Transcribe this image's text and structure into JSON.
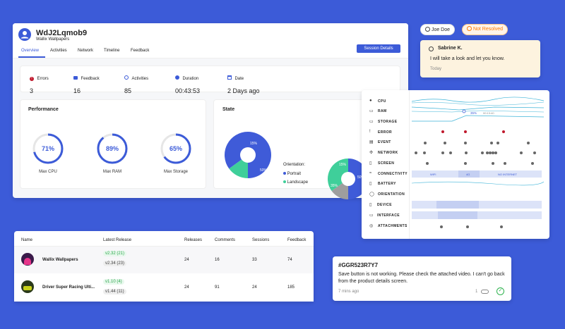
{
  "app": {
    "title": "WdJ2Lqmob9",
    "subtitle": "Wallix Wallpapers",
    "tabs": [
      "Overview",
      "Activities",
      "Network",
      "Timeline",
      "Feedback"
    ],
    "session_button": "Session Details"
  },
  "stats": [
    {
      "label": "Errors",
      "value": "3",
      "icon": "error-icon"
    },
    {
      "label": "Feedback",
      "value": "16",
      "icon": "feedback-icon"
    },
    {
      "label": "Activities",
      "value": "85",
      "icon": "activities-icon"
    },
    {
      "label": "Duration",
      "value": "00:43:53",
      "icon": "timer-icon"
    },
    {
      "label": "Date",
      "value": "2 Days ago",
      "icon": "calendar-icon"
    }
  ],
  "performance": {
    "title": "Performance",
    "gauges": [
      {
        "label": "Max CPU",
        "value": "71%",
        "fraction": 0.71
      },
      {
        "label": "Max RAM",
        "value": "89%",
        "fraction": 0.89
      },
      {
        "label": "Max Storage",
        "value": "65%",
        "fraction": 0.65
      }
    ]
  },
  "state": {
    "title": "State",
    "pie1": {
      "legend_title": "Orientation:",
      "slices": [
        {
          "label": "Portrait",
          "pct": 50,
          "text": "50%",
          "color": "#3f5bd8"
        },
        {
          "label": "Landscape",
          "pct": 15,
          "text": "15%",
          "color": "#3fcf9a"
        },
        {
          "label": "",
          "pct": 35,
          "text": "",
          "color": "#3f5bd8"
        }
      ]
    },
    "pie2": {
      "legend_title": "Co",
      "slices": [
        {
          "label": "",
          "pct": 50,
          "text": "50%",
          "color": "#3f5bd8"
        },
        {
          "label": "",
          "pct": 15,
          "text": "15%",
          "color": "#9e9e9e"
        },
        {
          "label": "",
          "pct": 35,
          "text": "35%",
          "color": "#3fcf9a"
        }
      ]
    }
  },
  "user": {
    "name": "Joe Doe",
    "status": "Not Resolved",
    "status_color": "#ff7a00"
  },
  "comment": {
    "author": "Sabrine K.",
    "text": "I will take a look and let you know.",
    "time": "Today"
  },
  "timeline": {
    "rows": [
      "CPU",
      "RAM",
      "STORAGE",
      "ERROR",
      "EVENT",
      "NETWORK",
      "SCREEN",
      "CONNECTIVITY",
      "BATTERY",
      "ORIENTATION",
      "DEVICE",
      "INTERFACE",
      "ATTACHMENTS"
    ],
    "ram_readout": "35%",
    "ram_time": "00:13:40",
    "connectivity": [
      "WIFI",
      "4G",
      "NO INTERNET"
    ]
  },
  "table": {
    "headers": [
      "Name",
      "Latest Release",
      "Releases",
      "Comments",
      "Sessions",
      "Feedback"
    ],
    "rows": [
      {
        "name": "Wallix Wallpapers",
        "android": "v2.32 (21)",
        "ios": "v2.34 (23)",
        "releases": "24",
        "comments": "16",
        "sessions": "33",
        "feedback": "74"
      },
      {
        "name": "Driver Super Racing Ulti...",
        "android": "v1.10 (4)",
        "ios": "v1.44 (11)",
        "releases": "24",
        "comments": "91",
        "sessions": "24",
        "feedback": "185"
      }
    ]
  },
  "ticket": {
    "id": "#GGR523R7Y7",
    "text": "Save button is not working. Please check the attached video. I can't go back from the product details screen.",
    "time": "7 mins ago",
    "attachments": "1"
  }
}
